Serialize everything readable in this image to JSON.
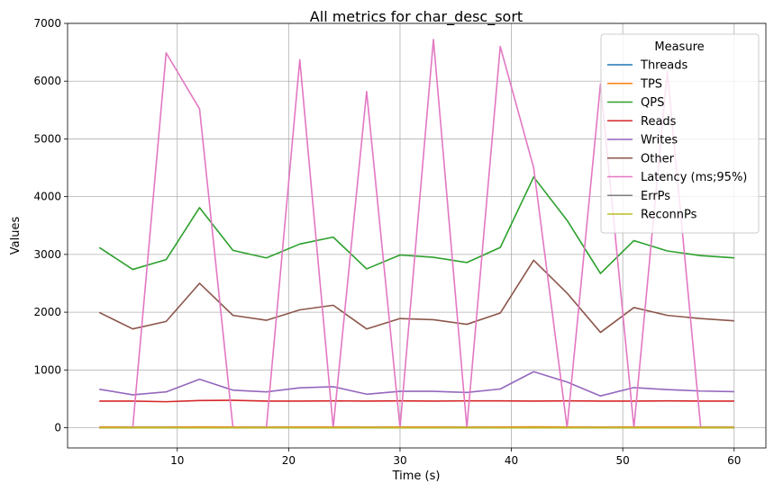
{
  "chart_data": {
    "type": "line",
    "title": "All metrics for char_desc_sort",
    "xlabel": "Time (s)",
    "ylabel": "Values",
    "xlim": [
      0.15,
      62.85
    ],
    "ylim": [
      -350,
      7000
    ],
    "x_ticks": [
      10,
      20,
      30,
      40,
      50,
      60
    ],
    "y_ticks": [
      0,
      1000,
      2000,
      3000,
      4000,
      5000,
      6000,
      7000
    ],
    "grid": true,
    "legend": {
      "title": "Measure",
      "placement": "top-right"
    },
    "x": [
      3,
      6,
      9,
      12,
      15,
      18,
      21,
      24,
      27,
      30,
      33,
      36,
      39,
      42,
      45,
      48,
      51,
      54,
      57,
      60
    ],
    "series": [
      {
        "name": "Threads",
        "color": "#1f77b4",
        "values": [
          8,
          8,
          8,
          8,
          8,
          8,
          8,
          8,
          8,
          8,
          8,
          8,
          8,
          8,
          8,
          8,
          8,
          8,
          8,
          8
        ]
      },
      {
        "name": "TPS",
        "color": "#ff7f0e",
        "values": [
          11,
          10,
          10,
          13,
          11,
          10,
          11,
          12,
          10,
          11,
          11,
          10,
          11,
          15,
          12,
          9,
          11,
          11,
          10,
          10
        ]
      },
      {
        "name": "QPS",
        "color": "#2ca02c",
        "values": [
          3120,
          2740,
          2910,
          3810,
          3070,
          2940,
          3180,
          3300,
          2750,
          2990,
          2950,
          2860,
          3120,
          4340,
          3590,
          2670,
          3240,
          3060,
          2980,
          2940
        ]
      },
      {
        "name": "Reads",
        "color": "#d62728",
        "values": [
          460,
          460,
          450,
          470,
          475,
          460,
          460,
          465,
          460,
          465,
          460,
          465,
          465,
          460,
          465,
          460,
          460,
          465,
          460,
          460
        ]
      },
      {
        "name": "Writes",
        "color": "#9467bd",
        "values": [
          665,
          570,
          620,
          840,
          650,
          620,
          690,
          710,
          580,
          630,
          630,
          610,
          670,
          970,
          790,
          550,
          695,
          660,
          635,
          625
        ]
      },
      {
        "name": "Other",
        "color": "#8c564b",
        "values": [
          1995,
          1710,
          1840,
          2500,
          1945,
          1860,
          2040,
          2120,
          1710,
          1890,
          1870,
          1790,
          1985,
          2900,
          2330,
          1650,
          2080,
          1945,
          1890,
          1850
        ]
      },
      {
        "name": "Latency (ms;95%)",
        "color": "#e377c2",
        "values": [
          0,
          0,
          6490,
          5520,
          0,
          0,
          6370,
          0,
          5820,
          0,
          6720,
          0,
          6600,
          4500,
          0,
          5950,
          0,
          6170,
          0,
          0
        ]
      },
      {
        "name": "ErrPs",
        "color": "#7f7f7f",
        "values": [
          0,
          0,
          0,
          0,
          0,
          0,
          0,
          0,
          0,
          0,
          0,
          0,
          0,
          0,
          0,
          0,
          0,
          0,
          0,
          0
        ]
      },
      {
        "name": "ReconnPs",
        "color": "#bcbd22",
        "values": [
          0,
          0,
          0,
          0,
          0,
          0,
          0,
          0,
          0,
          0,
          0,
          0,
          0,
          0,
          0,
          0,
          0,
          0,
          0,
          0
        ]
      }
    ]
  }
}
